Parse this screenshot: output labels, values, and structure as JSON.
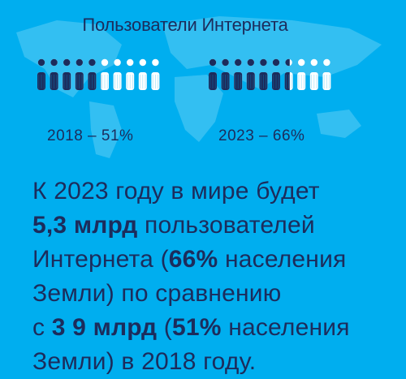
{
  "title": "Пользователи Интернета",
  "colors": {
    "background": "#00aeef",
    "text": "#1c2c5c",
    "filled_person": "#1c2c5c",
    "empty_person": "#ffffff",
    "map": "#33bff2"
  },
  "charts": [
    {
      "label": "2018 – 51%",
      "share": 0.51
    },
    {
      "label": "2023 – 66%",
      "share": 0.66
    }
  ],
  "statement": {
    "l1": "К 2023 году в мире будет",
    "l2_hl": "5,3 млрд",
    "l2": " пользователей",
    "l3a": "Интернета (",
    "l3_hl": "66%",
    "l3b": " населения",
    "l4": "Земли) по сравнению",
    "l5a": "с ",
    "l5_hl1": "3 9 млрд",
    "l5b": " (",
    "l5_hl2": "51%",
    "l5c": " населения",
    "l6": "Земли) в 2018 году."
  }
}
